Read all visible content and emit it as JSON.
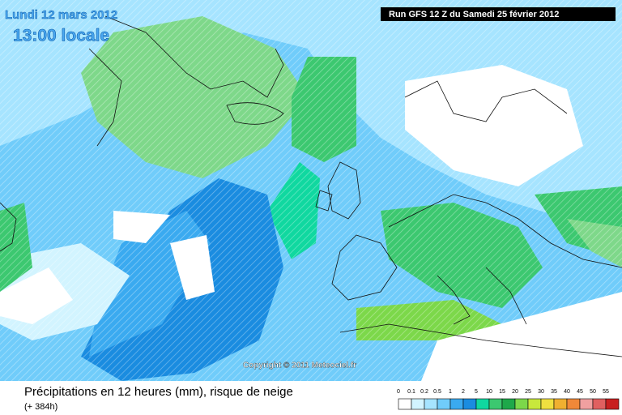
{
  "header": {
    "date": "Lundi 12 mars 2012",
    "time": "13:00 locale",
    "run": "Run GFS 12 Z du Samedi 25 février 2012"
  },
  "copyright": "Copyright © 2011 Meteociel.fr",
  "footer": {
    "title": "Précipitations en 12 heures (mm), risque de neige",
    "lead": "(+ 384h)"
  },
  "legend": {
    "items": [
      {
        "label": "0",
        "color": "#ffffff"
      },
      {
        "label": "0.1",
        "color": "#d2f4ff"
      },
      {
        "label": "0.2",
        "color": "#a6e4ff"
      },
      {
        "label": "0.5",
        "color": "#70ccfa"
      },
      {
        "label": "1",
        "color": "#3aaaf0"
      },
      {
        "label": "2",
        "color": "#1a8ce0"
      },
      {
        "label": "5",
        "color": "#10d8a0"
      },
      {
        "label": "10",
        "color": "#3cc870"
      },
      {
        "label": "15",
        "color": "#1ea84a"
      },
      {
        "label": "20",
        "color": "#7cd84a"
      },
      {
        "label": "25",
        "color": "#c8e83c"
      },
      {
        "label": "30",
        "color": "#f0e040"
      },
      {
        "label": "35",
        "color": "#f0b030"
      },
      {
        "label": "40",
        "color": "#f08838"
      },
      {
        "label": "45",
        "color": "#f0a0a0"
      },
      {
        "label": "50",
        "color": "#e06060"
      },
      {
        "label": "55",
        "color": "#c82020"
      }
    ]
  }
}
